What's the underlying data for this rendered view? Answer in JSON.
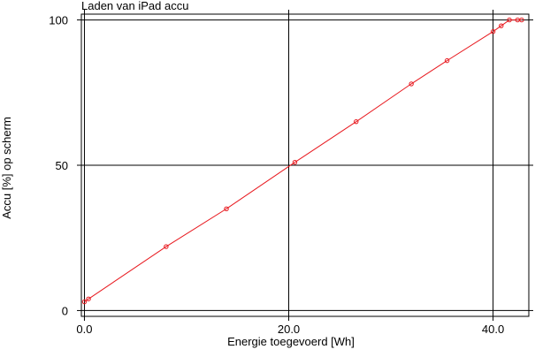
{
  "chart_data": {
    "type": "line",
    "title": "Laden van iPad accu",
    "xlabel": "Energie toegevoerd [Wh]",
    "ylabel": "Accu [%] op scherm",
    "xlim": [
      -0.3,
      43.5
    ],
    "ylim": [
      -2,
      102
    ],
    "xticks": [
      0,
      20,
      40
    ],
    "xtick_labels": [
      "0.0",
      "20.0",
      "40.0"
    ],
    "yticks": [
      0,
      50,
      100
    ],
    "ytick_labels": [
      "0",
      "50",
      "100"
    ],
    "grid": true,
    "series": [
      {
        "color": "#e8191f",
        "x": [
          0.0,
          0.4,
          8.0,
          13.9,
          20.6,
          26.6,
          32.0,
          35.5,
          40.0,
          40.8,
          41.6,
          42.4,
          42.8
        ],
        "y": [
          3,
          4,
          22,
          35,
          51,
          65,
          78,
          86,
          96,
          98,
          100,
          100,
          100
        ]
      }
    ]
  }
}
